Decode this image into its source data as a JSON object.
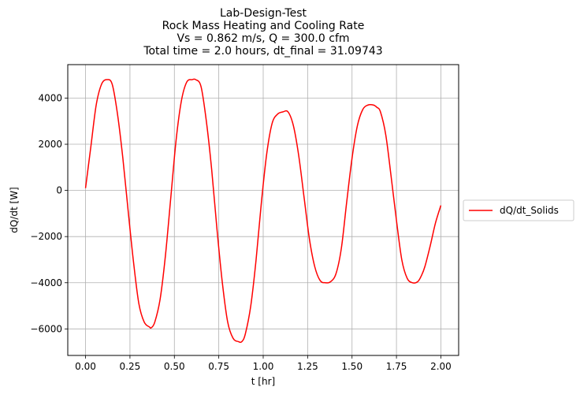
{
  "chart_data": {
    "type": "line",
    "title_lines": [
      "Lab-Design-Test",
      "Rock Mass Heating and Cooling Rate",
      "Vs = 0.862 m/s, Q = 300.0 cfm",
      "Total time = 2.0 hours, dt_final = 31.09743"
    ],
    "xlabel": "t [hr]",
    "ylabel": "dQ/dt [W]",
    "xlim": [
      -0.1,
      2.1
    ],
    "ylim": [
      -7150,
      5450
    ],
    "xticks": [
      0.0,
      0.25,
      0.5,
      0.75,
      1.0,
      1.25,
      1.5,
      1.75,
      2.0
    ],
    "xtick_labels": [
      "0.00",
      "0.25",
      "0.50",
      "0.75",
      "1.00",
      "1.25",
      "1.50",
      "1.75",
      "2.00"
    ],
    "yticks": [
      -6000,
      -4000,
      -2000,
      0,
      2000,
      4000
    ],
    "ytick_labels": [
      "−6000",
      "−4000",
      "−2000",
      "0",
      "2000",
      "4000"
    ],
    "grid": true,
    "legend_placement": "outside-right",
    "series": [
      {
        "name": "dQ/dt_Solids",
        "color": "#ff0000",
        "x": [
          0.0,
          0.03,
          0.06,
          0.09,
          0.12,
          0.15,
          0.18,
          0.21,
          0.24,
          0.27,
          0.3,
          0.33,
          0.36,
          0.37,
          0.39,
          0.42,
          0.45,
          0.48,
          0.51,
          0.54,
          0.57,
          0.6,
          0.62,
          0.65,
          0.68,
          0.71,
          0.74,
          0.77,
          0.8,
          0.83,
          0.86,
          0.88,
          0.9,
          0.93,
          0.96,
          0.99,
          1.02,
          1.05,
          1.08,
          1.11,
          1.14,
          1.17,
          1.2,
          1.23,
          1.26,
          1.29,
          1.32,
          1.35,
          1.38,
          1.41,
          1.44,
          1.47,
          1.5,
          1.53,
          1.56,
          1.59,
          1.62,
          1.64,
          1.66,
          1.69,
          1.72,
          1.75,
          1.78,
          1.81,
          1.84,
          1.87,
          1.89,
          1.91,
          1.94,
          1.97,
          2.0
        ],
        "y": [
          100,
          1900,
          3700,
          4600,
          4800,
          4600,
          3300,
          1400,
          -900,
          -3100,
          -4900,
          -5700,
          -5920,
          -5950,
          -5700,
          -4700,
          -2800,
          -300,
          2200,
          3900,
          4700,
          4800,
          4800,
          4500,
          3000,
          900,
          -1700,
          -4000,
          -5700,
          -6400,
          -6550,
          -6550,
          -6200,
          -5000,
          -3000,
          -500,
          1600,
          2900,
          3300,
          3400,
          3400,
          2800,
          1500,
          -300,
          -2100,
          -3300,
          -3900,
          -4000,
          -3950,
          -3600,
          -2500,
          -500,
          1400,
          2800,
          3500,
          3700,
          3700,
          3600,
          3400,
          2400,
          600,
          -1300,
          -3000,
          -3800,
          -4000,
          -3950,
          -3700,
          -3300,
          -2400,
          -1400,
          -650
        ]
      }
    ]
  }
}
